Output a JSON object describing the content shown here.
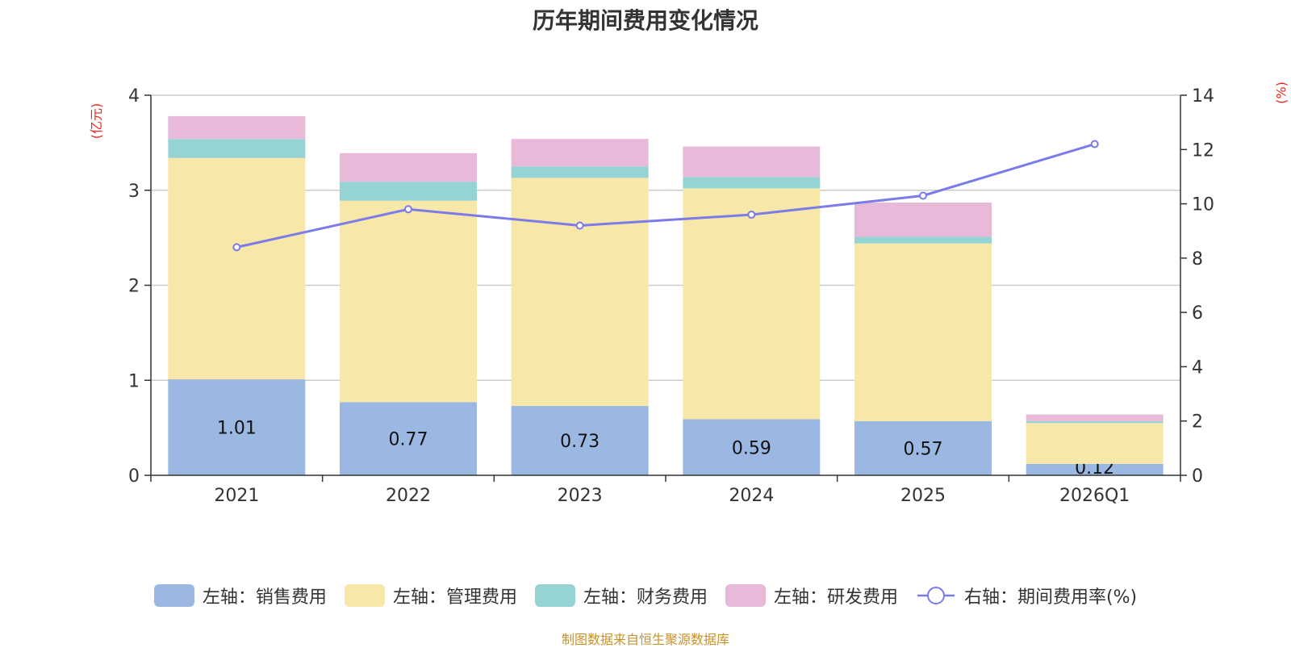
{
  "chart_data": {
    "type": "bar",
    "title": "历年期间费用变化情况",
    "categories": [
      "2021",
      "2022",
      "2023",
      "2024",
      "2025",
      "2026Q1"
    ],
    "left_axis": {
      "label": "(亿元)",
      "range": [
        0,
        4
      ],
      "ticks": [
        "0",
        "1",
        "2",
        "3",
        "4"
      ]
    },
    "right_axis": {
      "label": "(%)",
      "range": [
        0,
        14
      ],
      "ticks": [
        "0",
        "2",
        "4",
        "6",
        "8",
        "10",
        "12",
        "14"
      ]
    },
    "series": [
      {
        "name": "左轴：销售费用",
        "axis": "left",
        "type": "bar",
        "stack": true,
        "color": "#9bb8e2",
        "values": [
          1.01,
          0.77,
          0.73,
          0.59,
          0.57,
          0.12
        ],
        "labels": [
          "1.01",
          "0.77",
          "0.73",
          "0.59",
          "0.57",
          "0.12"
        ]
      },
      {
        "name": "左轴：管理费用",
        "axis": "left",
        "type": "bar",
        "stack": true,
        "color": "#f7e7a8",
        "values": [
          2.33,
          2.12,
          2.4,
          2.43,
          1.87,
          0.43
        ]
      },
      {
        "name": "左轴：财务费用",
        "axis": "left",
        "type": "bar",
        "stack": true,
        "color": "#96d4d4",
        "values": [
          0.2,
          0.2,
          0.12,
          0.12,
          0.07,
          0.02
        ]
      },
      {
        "name": "左轴：研发费用",
        "axis": "left",
        "type": "bar",
        "stack": true,
        "color": "#e8b9d9",
        "values": [
          0.24,
          0.3,
          0.29,
          0.32,
          0.36,
          0.07
        ]
      },
      {
        "name": "右轴：期间费用率(%)",
        "axis": "right",
        "type": "line",
        "color": "#7b7bea",
        "values": [
          8.4,
          9.8,
          9.2,
          9.6,
          10.3,
          12.2
        ]
      }
    ],
    "grid": true,
    "legend_position": "bottom"
  },
  "footer": "制图数据来自恒生聚源数据库"
}
